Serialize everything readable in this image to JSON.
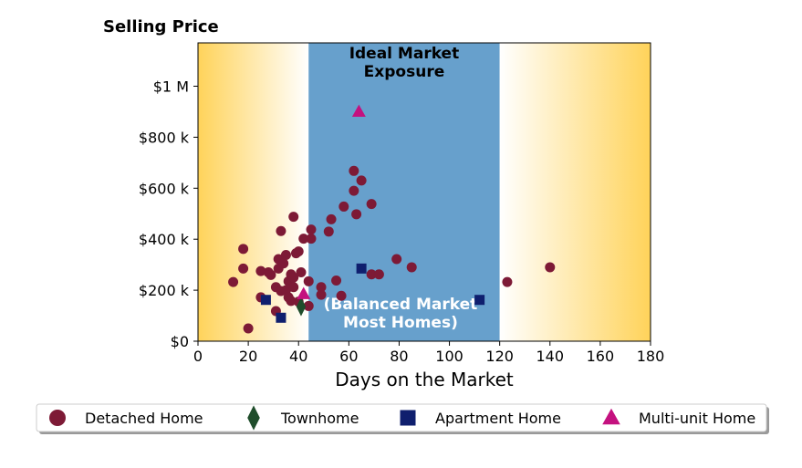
{
  "chart_data": {
    "type": "scatter",
    "title": "Selling Price",
    "xlabel": "Days on the Market",
    "ylabel": "",
    "xlim": [
      0,
      180
    ],
    "ylim": [
      0,
      1170000
    ],
    "x_ticks": [
      0,
      20,
      40,
      60,
      80,
      100,
      120,
      140,
      160,
      180
    ],
    "x_tick_labels": [
      "0",
      "20",
      "40",
      "60",
      "80",
      "100",
      "120",
      "140",
      "160",
      "180"
    ],
    "y_ticks": [
      0,
      200000,
      400000,
      600000,
      800000,
      1000000
    ],
    "y_tick_labels": [
      "$0",
      "$200 k",
      "$400 k",
      "$600 k",
      "$800 k",
      "$1 M"
    ],
    "grid": false,
    "legend_position": "bottom",
    "band": {
      "x_range": [
        44,
        120
      ],
      "color": "#67a0cc",
      "top_label_lines": [
        "Ideal Market",
        "Exposure"
      ],
      "bottom_label_lines": [
        "(Balanced Market",
        "Most Homes)"
      ]
    },
    "side_gradient_color": "#ffd35a",
    "series": [
      {
        "name": "Detached Home",
        "marker": "circle",
        "color": "#7d1a36",
        "points": [
          [
            14,
            232000
          ],
          [
            18,
            362000
          ],
          [
            18,
            285000
          ],
          [
            20,
            50000
          ],
          [
            25,
            275000
          ],
          [
            25,
            172000
          ],
          [
            28,
            270000
          ],
          [
            29,
            260000
          ],
          [
            31,
            212000
          ],
          [
            31,
            118000
          ],
          [
            32,
            285000
          ],
          [
            32,
            322000
          ],
          [
            33,
            432000
          ],
          [
            33,
            197000
          ],
          [
            34,
            305000
          ],
          [
            35,
            338000
          ],
          [
            35,
            200000
          ],
          [
            36,
            172000
          ],
          [
            36,
            235000
          ],
          [
            37,
            242000
          ],
          [
            37,
            262000
          ],
          [
            37,
            158000
          ],
          [
            38,
            488000
          ],
          [
            38,
            212000
          ],
          [
            38,
            250000
          ],
          [
            39,
            345000
          ],
          [
            40,
            352000
          ],
          [
            40,
            155000
          ],
          [
            41,
            270000
          ],
          [
            42,
            402000
          ],
          [
            44,
            235000
          ],
          [
            44,
            138000
          ],
          [
            45,
            438000
          ],
          [
            45,
            402000
          ],
          [
            49,
            212000
          ],
          [
            49,
            182000
          ],
          [
            52,
            430000
          ],
          [
            53,
            478000
          ],
          [
            55,
            238000
          ],
          [
            57,
            178000
          ],
          [
            58,
            528000
          ],
          [
            62,
            668000
          ],
          [
            62,
            590000
          ],
          [
            63,
            498000
          ],
          [
            65,
            630000
          ],
          [
            69,
            262000
          ],
          [
            69,
            538000
          ],
          [
            72,
            262000
          ],
          [
            79,
            322000
          ],
          [
            85,
            290000
          ],
          [
            123,
            232000
          ],
          [
            140,
            290000
          ]
        ]
      },
      {
        "name": "Townhome",
        "marker": "diamond",
        "color": "#1f4d2b",
        "points": [
          [
            41,
            135000
          ]
        ]
      },
      {
        "name": "Apartment Home",
        "marker": "square",
        "color": "#0f1f6e",
        "points": [
          [
            27,
            162000
          ],
          [
            33,
            92000
          ],
          [
            65,
            285000
          ],
          [
            112,
            162000
          ]
        ]
      },
      {
        "name": "Multi-unit Home",
        "marker": "triangle",
        "color": "#c4117f",
        "points": [
          [
            64,
            900000
          ],
          [
            42,
            185000
          ]
        ]
      }
    ]
  }
}
